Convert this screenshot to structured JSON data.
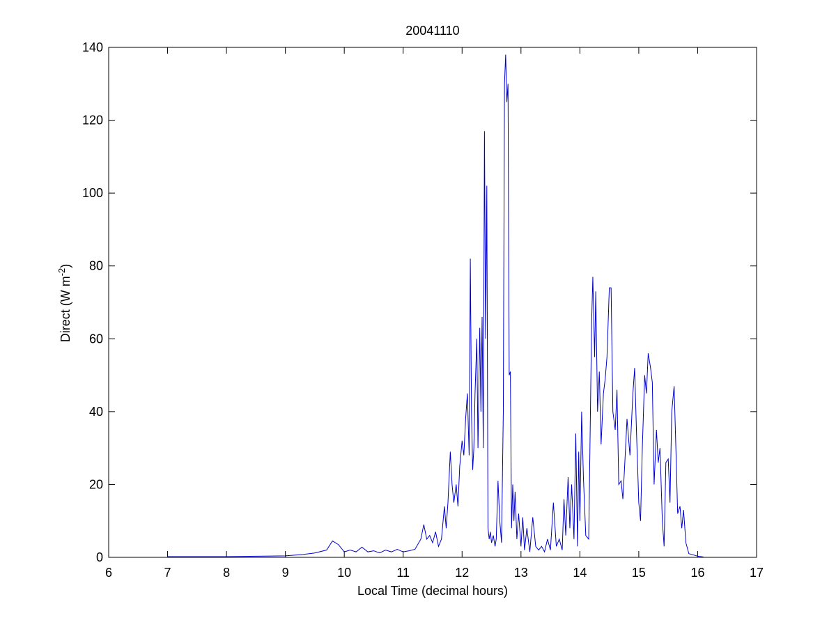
{
  "chart_data": {
    "type": "line",
    "title": "20041110",
    "xlabel": "Local Time (decimal hours)",
    "ylabel": [
      "Direct (W m",
      "-2",
      ")"
    ],
    "xlim": [
      6,
      17
    ],
    "ylim": [
      0,
      140
    ],
    "xticks": [
      6,
      7,
      8,
      9,
      10,
      11,
      12,
      13,
      14,
      15,
      16,
      17
    ],
    "yticks": [
      0,
      20,
      40,
      60,
      80,
      100,
      120,
      140
    ],
    "grid": false,
    "series": [
      {
        "name": "Direct",
        "color": "#0000cc",
        "x": [
          7.0,
          7.5,
          8.0,
          8.5,
          9.0,
          9.3,
          9.5,
          9.7,
          9.8,
          9.9,
          10.0,
          10.1,
          10.2,
          10.3,
          10.4,
          10.5,
          10.6,
          10.7,
          10.8,
          10.9,
          11.0,
          11.1,
          11.2,
          11.3,
          11.35,
          11.4,
          11.45,
          11.5,
          11.55,
          11.6,
          11.65,
          11.7,
          11.73,
          11.76,
          11.8,
          11.83,
          11.86,
          11.9,
          11.93,
          11.96,
          12.0,
          12.03,
          12.06,
          12.09,
          12.12,
          12.14,
          12.16,
          12.18,
          12.2,
          12.22,
          12.25,
          12.27,
          12.3,
          12.32,
          12.34,
          12.36,
          12.38,
          12.4,
          12.42,
          12.44,
          12.46,
          12.48,
          12.5,
          12.53,
          12.56,
          12.58,
          12.61,
          12.64,
          12.67,
          12.7,
          12.72,
          12.74,
          12.76,
          12.78,
          12.8,
          12.82,
          12.84,
          12.86,
          12.88,
          12.9,
          12.93,
          12.96,
          13.0,
          13.03,
          13.06,
          13.1,
          13.15,
          13.2,
          13.25,
          13.3,
          13.35,
          13.4,
          13.45,
          13.5,
          13.55,
          13.6,
          13.65,
          13.7,
          13.73,
          13.76,
          13.8,
          13.83,
          13.86,
          13.9,
          13.93,
          13.96,
          13.98,
          14.0,
          14.03,
          14.06,
          14.1,
          14.15,
          14.2,
          14.22,
          14.25,
          14.27,
          14.3,
          14.33,
          14.36,
          14.4,
          14.43,
          14.46,
          14.5,
          14.53,
          14.56,
          14.6,
          14.63,
          14.66,
          14.7,
          14.73,
          14.76,
          14.8,
          14.85,
          14.9,
          14.93,
          14.96,
          15.0,
          15.03,
          15.06,
          15.1,
          15.13,
          15.16,
          15.2,
          15.23,
          15.26,
          15.3,
          15.33,
          15.36,
          15.4,
          15.43,
          15.46,
          15.5,
          15.53,
          15.56,
          15.6,
          15.63,
          15.66,
          15.7,
          15.73,
          15.76,
          15.8,
          15.85,
          15.9,
          16.0,
          16.1
        ],
        "values": [
          0.2,
          0.2,
          0.2,
          0.3,
          0.4,
          0.8,
          1.2,
          2,
          4.5,
          3.5,
          1.5,
          2,
          1.5,
          2.8,
          1.5,
          1.8,
          1.2,
          2,
          1.5,
          2.2,
          1.5,
          1.8,
          2.2,
          5,
          9,
          5,
          6,
          4,
          7,
          3,
          5,
          14,
          8,
          15,
          29,
          20,
          15,
          20,
          14,
          25,
          32,
          28,
          38,
          45,
          28,
          82,
          40,
          24,
          30,
          45,
          60,
          30,
          63,
          40,
          66,
          30,
          117,
          60,
          102,
          8,
          5,
          7,
          4,
          6,
          3,
          5,
          21,
          10,
          4,
          40,
          130,
          138,
          125,
          130,
          50,
          51,
          8,
          20,
          10,
          18,
          5,
          12,
          3,
          11,
          2,
          8,
          1.5,
          11,
          3,
          2,
          3,
          1.5,
          5,
          2,
          15,
          3,
          5,
          2,
          16,
          6,
          22,
          8,
          20,
          5,
          34,
          3,
          29,
          10,
          40,
          22,
          6,
          5,
          65,
          77,
          55,
          73,
          40,
          51,
          31,
          45,
          49,
          55,
          74,
          74,
          40,
          35,
          46,
          20,
          21,
          16,
          25,
          38,
          28,
          45,
          52,
          35,
          15,
          10,
          30,
          50,
          45,
          56,
          52,
          48,
          20,
          35,
          26,
          30,
          10,
          3,
          26,
          27,
          15,
          40,
          47,
          30,
          12,
          14,
          8,
          13,
          4,
          1,
          0.8,
          0.3,
          0.1
        ]
      }
    ]
  }
}
